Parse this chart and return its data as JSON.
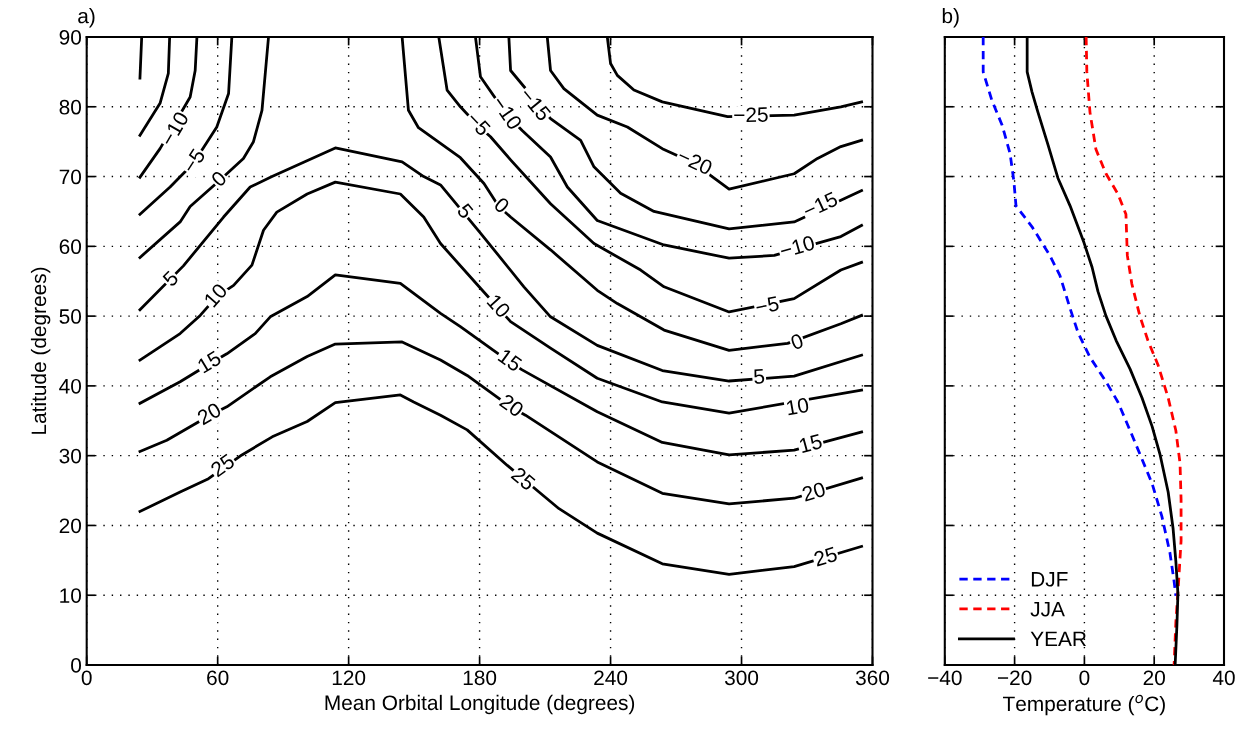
{
  "chart_data": [
    {
      "type": "line",
      "title": "a)",
      "xlabel": "Mean Orbital Longitude (degrees)",
      "ylabel": "Latitude (degrees)",
      "xlim": [
        0,
        360
      ],
      "xticks": [
        0,
        60,
        120,
        180,
        240,
        300,
        360
      ],
      "ylim": [
        0,
        90
      ],
      "yticks": [
        0,
        10,
        20,
        30,
        40,
        50,
        60,
        70,
        80,
        90
      ],
      "grid": true,
      "line_style": "solid",
      "marker": "none",
      "series": [
        {
          "color": "#000000",
          "x": [
            25.2,
            24.4
          ],
          "values": [
            90,
            84.1
          ]
        },
        {
          "color": "#000000",
          "x": [
            38.0,
            37.4,
            33.6,
            24.4
          ],
          "values": [
            90,
            84.8,
            80.5,
            75.9
          ]
        },
        {
          "color": "#000000",
          "x": [
            50.5,
            49.7,
            47.4,
            33.6,
            24.4
          ],
          "values": [
            90,
            85.2,
            81.4,
            74.0,
            69.9
          ]
        },
        {
          "color": "#000000",
          "x": [
            66.5,
            65.0,
            59.6,
            48.9,
            38.2,
            24.4
          ],
          "values": [
            90,
            81.9,
            77.1,
            71.9,
            68.5,
            64.6
          ]
        },
        {
          "color": "#000000",
          "x": [
            83.3,
            80.3,
            76.4,
            71.8,
            61.1,
            47.4,
            42.8,
            24.4
          ],
          "values": [
            90,
            79.5,
            75.0,
            72.6,
            69.5,
            65.7,
            63.5,
            58.4
          ]
        },
        {
          "color": "#000000",
          "x": [
            24.4,
            44.3,
            62.7,
            74.9,
            84.9,
            113.9,
            144.5,
            154.4,
            162.1,
            180.4,
            200.3,
            212.5,
            233.9,
            263.7,
            294.3,
            324.1,
            355
          ],
          "values": [
            50.9,
            57.2,
            64.2,
            68.5,
            70.0,
            74.1,
            72.1,
            70.0,
            68.8,
            61.9,
            54.2,
            49.9,
            45.8,
            42.2,
            40.7,
            41.4,
            44.4
          ]
        },
        {
          "color": "#000000",
          "x": [
            24.4,
            33.6,
            42.8,
            52.0,
            59.6,
            67.3,
            75.7,
            81.0,
            87.1,
            101.0,
            113.9,
            143.7,
            154.4,
            162.1,
            180.4,
            194.2,
            212.5,
            233.9,
            263.7,
            294.3,
            355
          ],
          "values": [
            43.7,
            45.6,
            47.5,
            50.1,
            52.8,
            54.4,
            57.3,
            62.3,
            64.9,
            67.5,
            69.2,
            67.5,
            64.2,
            60.4,
            54.0,
            49.2,
            45.4,
            41.1,
            37.7,
            36.1,
            39.4
          ]
        },
        {
          "color": "#000000",
          "x": [
            24.4,
            42.8,
            56.5,
            64.2,
            77.2,
            84.1,
            101.0,
            113.9,
            143.7,
            162.1,
            171.2,
            193.4,
            199.5,
            233.9,
            263.7,
            294.3,
            324.1,
            355
          ],
          "values": [
            37.5,
            40.6,
            43.2,
            44.6,
            47.5,
            49.9,
            52.8,
            55.9,
            54.7,
            50.4,
            48.5,
            43.5,
            42.3,
            36.3,
            31.9,
            30.1,
            30.8,
            33.4
          ]
        },
        {
          "color": "#000000",
          "x": [
            24.4,
            36.7,
            56.5,
            64.2,
            84.1,
            101.0,
            113.9,
            144.5,
            162.1,
            174.3,
            194.2,
            201.0,
            233.9,
            263.7,
            294.3,
            324.1,
            355
          ],
          "values": [
            30.6,
            32.2,
            35.8,
            37.0,
            41.3,
            44.2,
            46.0,
            46.3,
            43.7,
            41.5,
            37.0,
            35.8,
            29.1,
            24.6,
            23.1,
            23.9,
            26.8
          ]
        },
        {
          "color": "#000000",
          "x": [
            24.4,
            42.8,
            55.8,
            71.1,
            85.0,
            101.0,
            113.9,
            143.7,
            149.8,
            162.1,
            174.3,
            192.7,
            207.2,
            216.4,
            233.9,
            263.7,
            294.3,
            324.1,
            355
          ],
          "values": [
            22.0,
            24.8,
            26.7,
            30.1,
            32.7,
            34.9,
            37.6,
            38.7,
            37.7,
            35.8,
            33.7,
            28.6,
            24.8,
            22.4,
            18.9,
            14.5,
            13.0,
            14.1,
            17.0
          ]
        },
        {
          "color": "#000000",
          "x": [
            238.5,
            240.0,
            243.1,
            250.7,
            263.7,
            293.6,
            324.1,
            345.5,
            355
          ],
          "values": [
            90,
            86.2,
            84.5,
            82.4,
            80.7,
            78.6,
            78.8,
            80.0,
            80.7
          ]
        },
        {
          "color": "#000000",
          "x": [
            211.0,
            212.5,
            218.6,
            233.9,
            247.7,
            263.7,
            278.3,
            294.3,
            324.1,
            334.8,
            345.5,
            355
          ],
          "values": [
            90,
            85.2,
            82.6,
            78.8,
            77.1,
            74.0,
            71.9,
            68.2,
            70.4,
            72.6,
            74.3,
            75.2
          ]
        },
        {
          "color": "#000000",
          "x": [
            193.4,
            194.2,
            212.5,
            226.3,
            232.4,
            244.6,
            259.9,
            294.3,
            324.1,
            345.5,
            355
          ],
          "values": [
            90,
            85.2,
            78.3,
            75.2,
            71.4,
            67.6,
            65.0,
            62.5,
            63.5,
            66.6,
            68.0
          ]
        },
        {
          "color": "#000000",
          "x": [
            178.1,
            180.4,
            192.6,
            199.5,
            212.5,
            220.2,
            233.9,
            264.5,
            294.3,
            315.0,
            345.5,
            355
          ],
          "values": [
            90,
            84.3,
            78.8,
            76.6,
            72.8,
            68.5,
            63.7,
            60.2,
            58.3,
            58.7,
            61.4,
            63.0
          ]
        },
        {
          "color": "#000000",
          "x": [
            161.3,
            165.1,
            171.2,
            178.9,
            185.0,
            194.2,
            212.5,
            232.4,
            253.8,
            264.5,
            294.3,
            324.1,
            345.5,
            355
          ],
          "values": [
            90,
            82.4,
            80.0,
            77.4,
            75.7,
            72.4,
            66.1,
            60.4,
            56.6,
            54.2,
            50.6,
            52.5,
            56.6,
            57.7
          ]
        },
        {
          "color": "#000000",
          "x": [
            144.5,
            147.4,
            152.0,
            171.2,
            182.0,
            188.8,
            194.2,
            212.5,
            233.9,
            243.1,
            264.5,
            294.3,
            321.1,
            345.5,
            355
          ],
          "values": [
            90,
            79.5,
            77.0,
            72.7,
            69.0,
            65.7,
            64.2,
            59.5,
            53.7,
            51.8,
            48.0,
            45.1,
            46.1,
            48.9,
            50.1
          ]
        }
      ],
      "annotations": [
        {
          "text": "−10",
          "x": 40.9,
          "y": 76.7
        },
        {
          "text": "−5",
          "x": 49.7,
          "y": 72.1
        },
        {
          "text": "0",
          "x": 61.1,
          "y": 69.5
        },
        {
          "text": "5",
          "x": 39.0,
          "y": 55.2
        },
        {
          "text": "10",
          "x": 59.6,
          "y": 52.8
        },
        {
          "text": "15",
          "x": 56.5,
          "y": 43.2
        },
        {
          "text": "20",
          "x": 56.5,
          "y": 35.8
        },
        {
          "text": "25",
          "x": 62.7,
          "y": 28.4
        },
        {
          "text": "−5",
          "x": 178.9,
          "y": 77.4
        },
        {
          "text": "−10",
          "x": 191.9,
          "y": 79.0
        },
        {
          "text": "−15",
          "x": 204.9,
          "y": 80.2
        },
        {
          "text": "5",
          "x": 172.8,
          "y": 64.9
        },
        {
          "text": "0",
          "x": 189.6,
          "y": 65.7
        },
        {
          "text": "10",
          "x": 188.1,
          "y": 51.3
        },
        {
          "text": "15",
          "x": 193.4,
          "y": 43.5
        },
        {
          "text": "20",
          "x": 194.2,
          "y": 37.0
        },
        {
          "text": "25",
          "x": 199.5,
          "y": 26.5
        },
        {
          "text": "−25",
          "x": 304.3,
          "y": 78.6
        },
        {
          "text": "−20",
          "x": 278.3,
          "y": 71.9
        },
        {
          "text": "−15",
          "x": 336.4,
          "y": 65.7
        },
        {
          "text": "−10",
          "x": 325.7,
          "y": 59.7
        },
        {
          "text": "−5",
          "x": 311.9,
          "y": 51.3
        },
        {
          "text": "0",
          "x": 325.7,
          "y": 46.1
        },
        {
          "text": "5",
          "x": 308.1,
          "y": 41.1
        },
        {
          "text": "10",
          "x": 325.7,
          "y": 36.8
        },
        {
          "text": "15",
          "x": 331.8,
          "y": 31.5
        },
        {
          "text": "20",
          "x": 333.3,
          "y": 24.6
        },
        {
          "text": "25",
          "x": 338.7,
          "y": 15.3
        }
      ]
    },
    {
      "type": "line",
      "title": "b)",
      "xlabel": "Temperature ($^{o}$C)",
      "xlim": [
        -40,
        40
      ],
      "xticks": [
        -40,
        -20,
        0,
        20,
        40
      ],
      "ylim": [
        0,
        90
      ],
      "yticks": [
        0,
        10,
        20,
        30,
        40,
        50,
        60,
        70,
        80,
        90
      ],
      "grid": true,
      "tick_labels": "x",
      "legend": "bottom left",
      "marker": "none",
      "series": [
        {
          "name": "DJF",
          "color": "#0000ff",
          "line_style": "dashed",
          "x": [
            -29.0,
            -29.0,
            -26.5,
            -23.6,
            -21.3,
            -20.2,
            -19.6,
            -15.0,
            -9.9,
            -7.0,
            -4.1,
            -1.8,
            1.6,
            6.2,
            9.6,
            13.6,
            16.5,
            19.4,
            22.2,
            24.5,
            25.7,
            26.2
          ],
          "values": [
            90,
            85.0,
            80.9,
            77.4,
            73.3,
            69.3,
            65.8,
            62.8,
            58.7,
            55.8,
            51.1,
            47.6,
            44.1,
            40.6,
            37.7,
            33.0,
            29.5,
            26.0,
            21.3,
            16.1,
            12.0,
            9.9
          ]
        },
        {
          "name": "JJA",
          "color": "#ff0000",
          "line_style": "dashed",
          "x": [
            0.5,
            0.7,
            1.6,
            3.3,
            6.2,
            9.6,
            11.9,
            12.3,
            13.6,
            15.9,
            18.2,
            21.1,
            24.0,
            26.2,
            27.4,
            27.7,
            27.7,
            27.0,
            26.2,
            25.7
          ],
          "values": [
            90,
            85.0,
            79.2,
            73.9,
            70.4,
            67.5,
            64.6,
            58.7,
            54.6,
            50.0,
            46.5,
            43.0,
            38.3,
            33.6,
            28.9,
            23.7,
            17.8,
            12.0,
            6.1,
            0
          ]
        },
        {
          "name": "YEAR",
          "color": "#000000",
          "line_style": "solid",
          "x": [
            -16.4,
            -16.4,
            -15.0,
            -13.3,
            -10.4,
            -7.6,
            -4.1,
            -0.1,
            2.2,
            3.9,
            6.2,
            9.1,
            13.1,
            16.5,
            19.4,
            21.7,
            24.0,
            25.4,
            26.2,
            26.8,
            26.5,
            26.0
          ],
          "values": [
            90,
            85.0,
            82.1,
            79.2,
            74.5,
            69.8,
            65.8,
            60.5,
            57.0,
            53.5,
            50.0,
            46.5,
            42.4,
            38.3,
            34.2,
            30.1,
            24.8,
            19.6,
            14.9,
            10.2,
            5.6,
            0
          ]
        }
      ]
    }
  ]
}
